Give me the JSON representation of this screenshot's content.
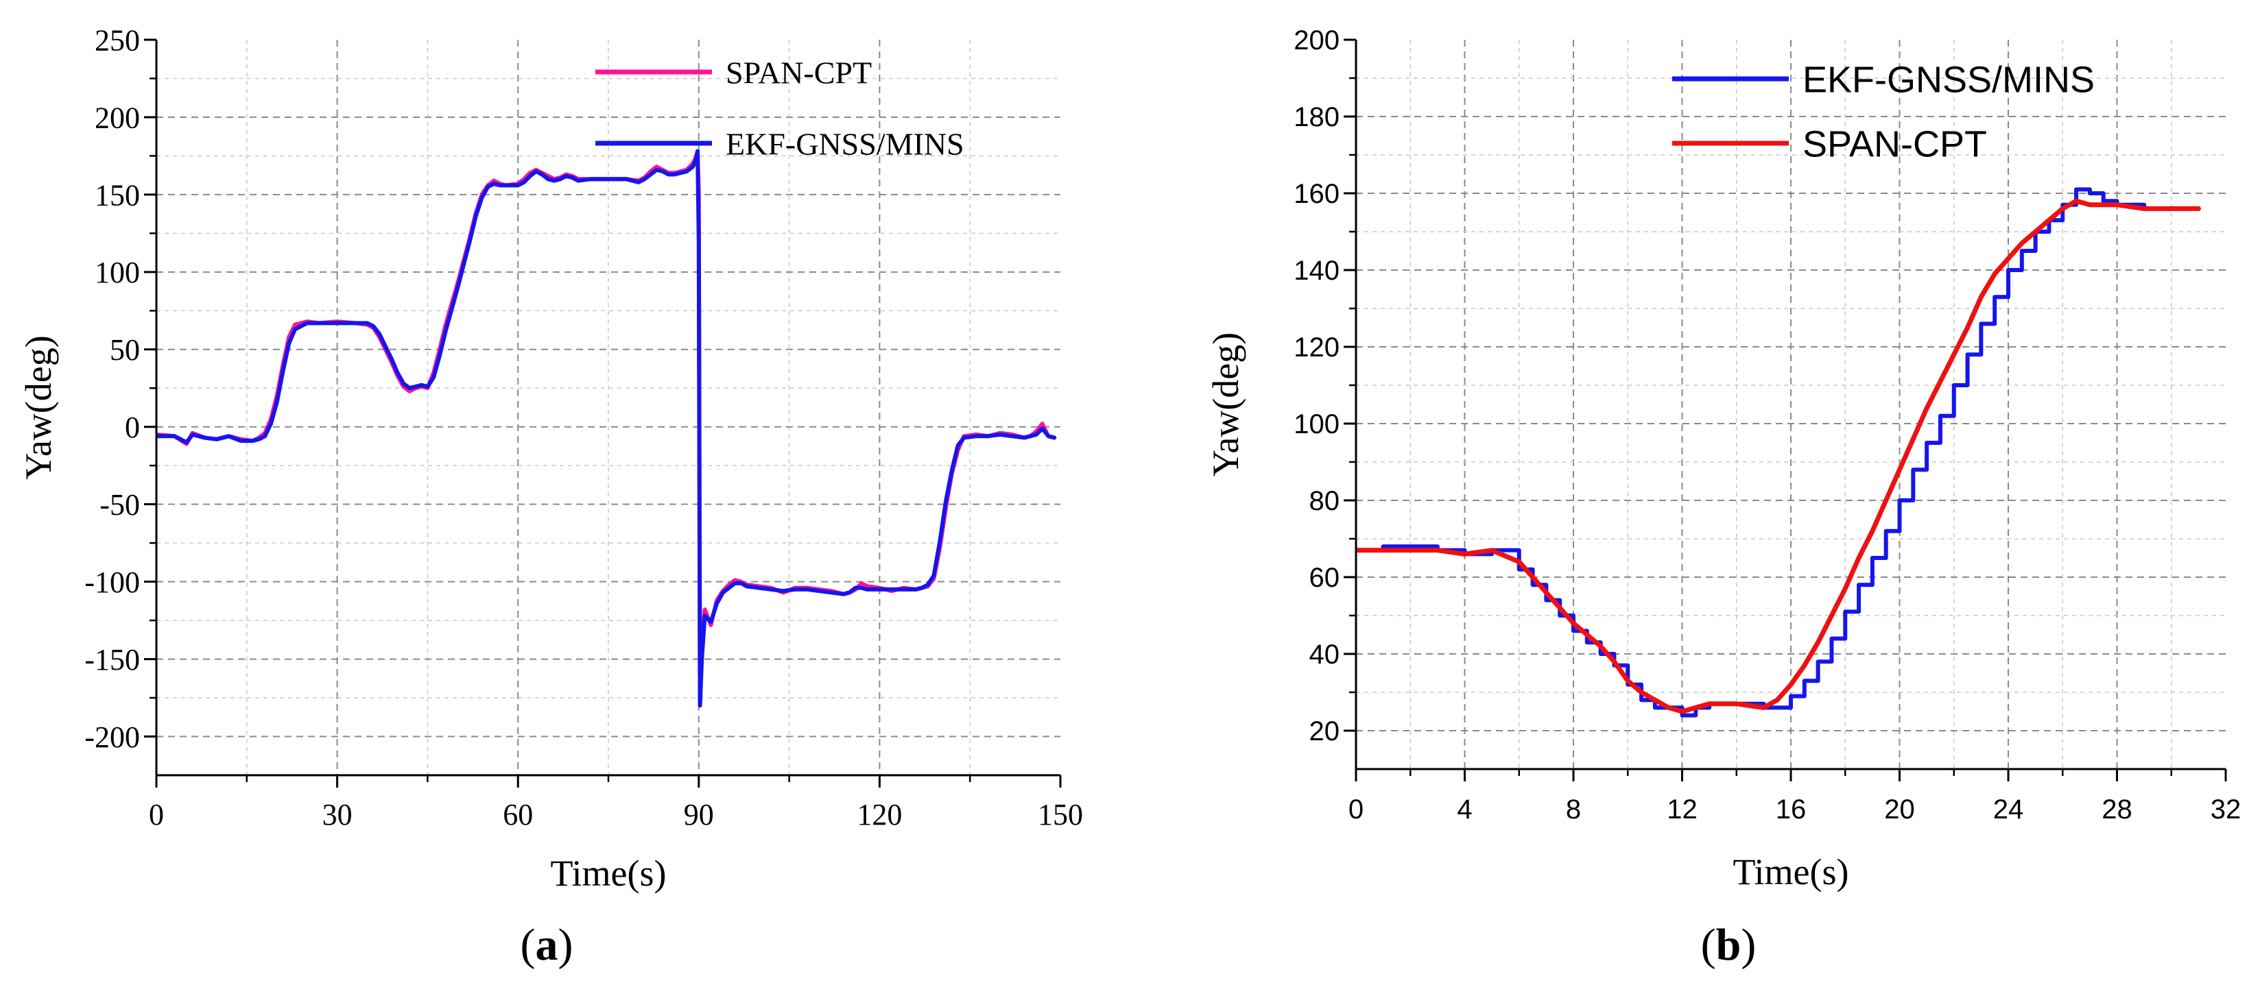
{
  "chart_data": [
    {
      "type": "line",
      "panel_label": "(a)",
      "xlabel": "Time(s)",
      "ylabel": "Yaw(deg)",
      "xlim": [
        0,
        150
      ],
      "ylim": [
        -225,
        250
      ],
      "xticks": [
        0,
        30,
        60,
        90,
        120,
        150
      ],
      "yticks": [
        -200,
        -150,
        -100,
        -50,
        0,
        50,
        100,
        150,
        200,
        250
      ],
      "grid": true,
      "legend": "top-right",
      "series": [
        {
          "name": "SPAN-CPT",
          "color": "#ff1493",
          "x": [
            0,
            3,
            5,
            6,
            8,
            10,
            12,
            14,
            16,
            17,
            18,
            19,
            20,
            21,
            22,
            23,
            25,
            27,
            30,
            33,
            35,
            36,
            37,
            38,
            39,
            40,
            41,
            42,
            43,
            44,
            45,
            46,
            47,
            48,
            50,
            52,
            53,
            54,
            55,
            56,
            57,
            58,
            60,
            61,
            62,
            63,
            64,
            65,
            66,
            67,
            68,
            69,
            70,
            72,
            75,
            78,
            80,
            81,
            82,
            83,
            84,
            85,
            86,
            87,
            88,
            89,
            89.5,
            89.8,
            90,
            90.2,
            90.5,
            91,
            92,
            93,
            94,
            95,
            96,
            97,
            98,
            100,
            102,
            104,
            106,
            108,
            110,
            112,
            114,
            115,
            116,
            117,
            118,
            120,
            122,
            124,
            126,
            127,
            128,
            129,
            130,
            131,
            132,
            133,
            134,
            136,
            138,
            140,
            142,
            144,
            145,
            146,
            147,
            148,
            149
          ],
          "y": [
            -5,
            -6,
            -11,
            -4,
            -7,
            -8,
            -6,
            -8,
            -9,
            -7,
            -4,
            5,
            20,
            40,
            58,
            66,
            68,
            67,
            68,
            67,
            66,
            64,
            58,
            50,
            42,
            33,
            26,
            23,
            25,
            26,
            25,
            35,
            50,
            66,
            93,
            122,
            138,
            150,
            156,
            159,
            157,
            156,
            157,
            160,
            164,
            166,
            164,
            162,
            160,
            161,
            163,
            162,
            160,
            160,
            160,
            160,
            159,
            161,
            165,
            168,
            166,
            164,
            164,
            165,
            166,
            170,
            174,
            178,
            150,
            -178,
            -140,
            -118,
            -128,
            -112,
            -106,
            -102,
            -99,
            -100,
            -102,
            -103,
            -104,
            -107,
            -104,
            -104,
            -105,
            -106,
            -108,
            -107,
            -105,
            -101,
            -103,
            -104,
            -106,
            -104,
            -105,
            -104,
            -103,
            -98,
            -78,
            -52,
            -30,
            -15,
            -6,
            -5,
            -6,
            -4,
            -5,
            -7,
            -6,
            -3,
            2,
            -6,
            -7
          ]
        },
        {
          "name": "EKF-GNSS/MINS",
          "color": "#1515ee",
          "x": [
            0,
            3,
            5,
            6,
            8,
            10,
            12,
            14,
            16,
            17,
            18,
            19,
            20,
            21,
            22,
            23,
            25,
            27,
            30,
            33,
            35,
            36,
            37,
            38,
            39,
            40,
            41,
            42,
            43,
            44,
            45,
            46,
            47,
            48,
            50,
            52,
            53,
            54,
            55,
            56,
            57,
            58,
            60,
            61,
            62,
            63,
            64,
            65,
            66,
            67,
            68,
            69,
            70,
            72,
            75,
            78,
            80,
            81,
            82,
            83,
            84,
            85,
            86,
            87,
            88,
            89,
            89.5,
            89.8,
            90,
            90.2,
            90.5,
            91,
            92,
            93,
            94,
            95,
            96,
            97,
            98,
            100,
            102,
            104,
            106,
            108,
            110,
            112,
            114,
            115,
            116,
            117,
            118,
            120,
            122,
            124,
            126,
            127,
            128,
            129,
            130,
            131,
            132,
            133,
            134,
            136,
            138,
            140,
            142,
            144,
            145,
            146,
            147,
            148,
            149
          ],
          "y": [
            -6,
            -6,
            -10,
            -5,
            -7,
            -8,
            -6,
            -9,
            -9,
            -8,
            -6,
            2,
            16,
            36,
            54,
            63,
            67,
            67,
            67,
            67,
            67,
            65,
            60,
            52,
            44,
            35,
            28,
            25,
            26,
            27,
            26,
            32,
            46,
            62,
            90,
            120,
            136,
            148,
            155,
            157,
            156,
            156,
            156,
            158,
            162,
            165,
            163,
            160,
            159,
            160,
            162,
            161,
            159,
            160,
            160,
            160,
            158,
            160,
            163,
            166,
            165,
            163,
            163,
            164,
            165,
            168,
            172,
            178,
            120,
            -180,
            -150,
            -122,
            -126,
            -114,
            -107,
            -104,
            -101,
            -101,
            -103,
            -104,
            -105,
            -106,
            -105,
            -105,
            -106,
            -107,
            -108,
            -107,
            -104,
            -104,
            -105,
            -105,
            -105,
            -105,
            -105,
            -104,
            -102,
            -96,
            -74,
            -48,
            -28,
            -12,
            -7,
            -6,
            -6,
            -5,
            -6,
            -7,
            -6,
            -5,
            -1,
            -6,
            -7
          ]
        }
      ]
    },
    {
      "type": "line",
      "panel_label": "(b)",
      "xlabel": "Time(s)",
      "ylabel": "Yaw(deg)",
      "xlim": [
        0,
        32
      ],
      "ylim": [
        10,
        200
      ],
      "xticks": [
        0,
        4,
        8,
        12,
        16,
        20,
        24,
        28,
        32
      ],
      "yticks": [
        20,
        40,
        60,
        80,
        100,
        120,
        140,
        160,
        180,
        200
      ],
      "grid": true,
      "legend": "top-left",
      "series": [
        {
          "name": "EKF-GNSS/MINS",
          "color": "#1515ee",
          "style": "step",
          "x": [
            0,
            1,
            2,
            3,
            4,
            5,
            6,
            6.5,
            7,
            7.5,
            8,
            8.5,
            9,
            9.5,
            10,
            10.5,
            11,
            12,
            12.5,
            13,
            14,
            15,
            15.5,
            16,
            16.5,
            17,
            17.5,
            18,
            18.5,
            19,
            19.5,
            20,
            20.5,
            21,
            21.5,
            22,
            22.5,
            23,
            23.5,
            24,
            24.5,
            25,
            25.5,
            26,
            26.5,
            27,
            27.5,
            28,
            29,
            30,
            31
          ],
          "y": [
            67,
            68,
            68,
            67,
            66,
            67,
            62,
            58,
            54,
            50,
            46,
            43,
            40,
            37,
            32,
            28,
            26,
            24,
            26,
            27,
            27,
            26,
            26,
            29,
            33,
            38,
            44,
            51,
            58,
            65,
            72,
            80,
            88,
            95,
            102,
            110,
            118,
            126,
            133,
            140,
            145,
            150,
            153,
            157,
            161,
            160,
            158,
            157,
            156,
            156,
            156
          ]
        },
        {
          "name": "SPAN-CPT",
          "color": "#ee1111",
          "style": "line",
          "x": [
            0,
            1,
            2,
            3,
            4,
            5,
            6,
            6.5,
            7,
            7.5,
            8,
            8.5,
            9,
            9.5,
            10,
            10.5,
            11,
            11.5,
            12,
            12.5,
            13,
            14,
            15,
            15.5,
            16,
            16.5,
            17,
            17.5,
            18,
            18.5,
            19,
            19.5,
            20,
            20.5,
            21,
            21.5,
            22,
            22.5,
            23,
            23.5,
            24,
            24.5,
            25,
            25.5,
            26,
            26.5,
            27,
            27.5,
            28,
            29,
            30,
            31
          ],
          "y": [
            67,
            67,
            67,
            67,
            66,
            67,
            64,
            60,
            56,
            52,
            48,
            45,
            42,
            38,
            33,
            30,
            28,
            26,
            25,
            26,
            27,
            27,
            26,
            28,
            32,
            37,
            43,
            50,
            57,
            65,
            72,
            80,
            88,
            96,
            104,
            111,
            118,
            125,
            133,
            139,
            143,
            147,
            150,
            153,
            156,
            158,
            157,
            157,
            157,
            156,
            156,
            156
          ]
        }
      ]
    }
  ]
}
